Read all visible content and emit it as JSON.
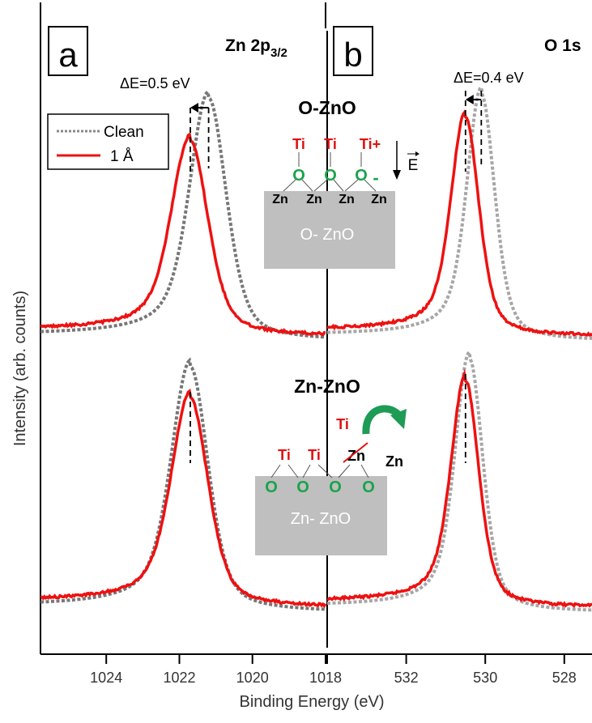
{
  "colors": {
    "clean": "#777777",
    "clean_b": "#a6a6a6",
    "one_a": "#ee1111",
    "ti": "#e01010",
    "o": "#1aa34a",
    "substrate": "#bfbfbf",
    "arrow_green": "#1e9b55"
  },
  "ylabel": "Intensity (arb. counts)",
  "xlabel": "Binding Energy (eV)",
  "legend": {
    "clean": "Clean",
    "one": "1 Å"
  },
  "panel_a": {
    "letter": "a",
    "title_main": "Zn 2p",
    "title_sub": "3/2",
    "delta": "ΔE=0.5 eV"
  },
  "panel_b": {
    "letter": "b",
    "title": "O 1s",
    "delta": "ΔE=0.4 eV"
  },
  "inset_top": {
    "title": "O-ZnO",
    "substrate": "O- ZnO",
    "ti": [
      "Ti",
      "Ti",
      "Ti+"
    ],
    "o": [
      "O",
      "O",
      "O",
      "-"
    ],
    "zn": [
      "Zn",
      "Zn",
      "Zn",
      "Zn"
    ],
    "field": "E"
  },
  "inset_bottom": {
    "title": "Zn-ZnO",
    "substrate": "Zn- ZnO",
    "ti": [
      "Ti",
      "Ti"
    ],
    "ti_up": "Ti",
    "zn_x": "Zn",
    "zn_out": "Zn",
    "o": [
      "O",
      "O",
      "O",
      "O"
    ]
  },
  "chart_data": [
    {
      "type": "line",
      "panel": "a",
      "title": "Zn 2p3/2",
      "xlabel": "Binding Energy (eV)",
      "ylabel": "Intensity (arb. counts)",
      "x_reversed": true,
      "xlim": [
        1025.8,
        1018
      ],
      "xticks": [
        1024,
        1022,
        1020,
        1018
      ],
      "xtick_labels": [
        "1024",
        "1022",
        "1020",
        "1018"
      ],
      "legend": "top-left",
      "series": [
        {
          "name": "Clean",
          "group": "O-ZnO",
          "style": "dotted",
          "peak": 1021.2,
          "delta": "ΔE=0.5 eV"
        },
        {
          "name": "1 Å",
          "group": "O-ZnO",
          "style": "solid",
          "peak": 1021.7
        },
        {
          "name": "Clean",
          "group": "Zn-ZnO",
          "style": "dotted",
          "peak": 1021.7
        },
        {
          "name": "1 Å",
          "group": "Zn-ZnO",
          "style": "solid",
          "peak": 1021.7
        }
      ]
    },
    {
      "type": "line",
      "panel": "b",
      "title": "O 1s",
      "xlabel": "Binding Energy (eV)",
      "ylabel": "Intensity (arb. counts)",
      "x_reversed": true,
      "xlim": [
        534,
        527.3
      ],
      "xticks": [
        532,
        530,
        528
      ],
      "xtick_labels": [
        "532",
        "530",
        "528"
      ],
      "series": [
        {
          "name": "Clean",
          "group": "O-ZnO",
          "style": "dotted",
          "peak": 530.1,
          "delta": "ΔE=0.4 eV"
        },
        {
          "name": "1 Å",
          "group": "O-ZnO",
          "style": "solid",
          "peak": 530.5
        },
        {
          "name": "Clean",
          "group": "Zn-ZnO",
          "style": "dotted",
          "peak": 530.4
        },
        {
          "name": "1 Å",
          "group": "Zn-ZnO",
          "style": "solid",
          "peak": 530.5
        }
      ]
    }
  ]
}
